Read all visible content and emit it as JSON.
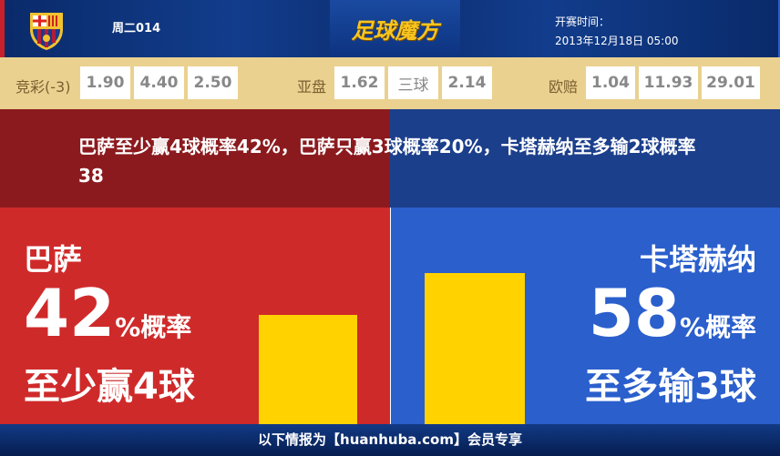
{
  "header": {
    "match_no": "周二014",
    "brand": "足球魔方",
    "time_label": "开赛时间：",
    "time_value": "2013年12月18日 05:00"
  },
  "odds": {
    "jingcai": {
      "label": "竞彩(-3)",
      "values": [
        "1.90",
        "4.40",
        "2.50"
      ]
    },
    "yapan": {
      "label": "亚盘",
      "values": [
        "1.62",
        "三球",
        "2.14"
      ]
    },
    "ouzhou": {
      "label": "欧赔",
      "values": [
        "1.04",
        "11.93",
        "29.01"
      ]
    }
  },
  "summary": "巴萨至少赢4球概率42%，巴萨只赢3球概率20%，卡塔赫纳至多输2球概率38",
  "left": {
    "team": "巴萨",
    "percent": "42",
    "unit": "%概率",
    "result": "至少赢4球",
    "value": 42
  },
  "right": {
    "team": "卡塔赫纳",
    "percent": "58",
    "unit": "%概率",
    "result": "至多输3球",
    "value": 58
  },
  "colors": {
    "left": "#cf2a2a",
    "right": "#2a5fcc",
    "bar": "#ffd200",
    "odds_bg": "#ead190"
  },
  "footer": "以下情报为【huanhuba.com】会员专享"
}
